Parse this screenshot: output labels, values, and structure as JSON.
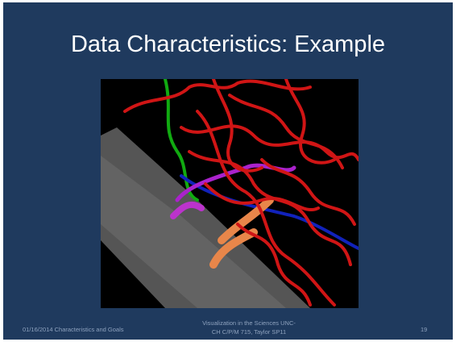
{
  "slide": {
    "title": "Data Characteristics: Example",
    "footer": {
      "date_topic": "01/16/2014 Characteristics and Goals",
      "course": [
        "Visualization in the Sciences UNC-",
        "CH C/P/M 715, Taylor SP11"
      ],
      "page": "19"
    }
  }
}
